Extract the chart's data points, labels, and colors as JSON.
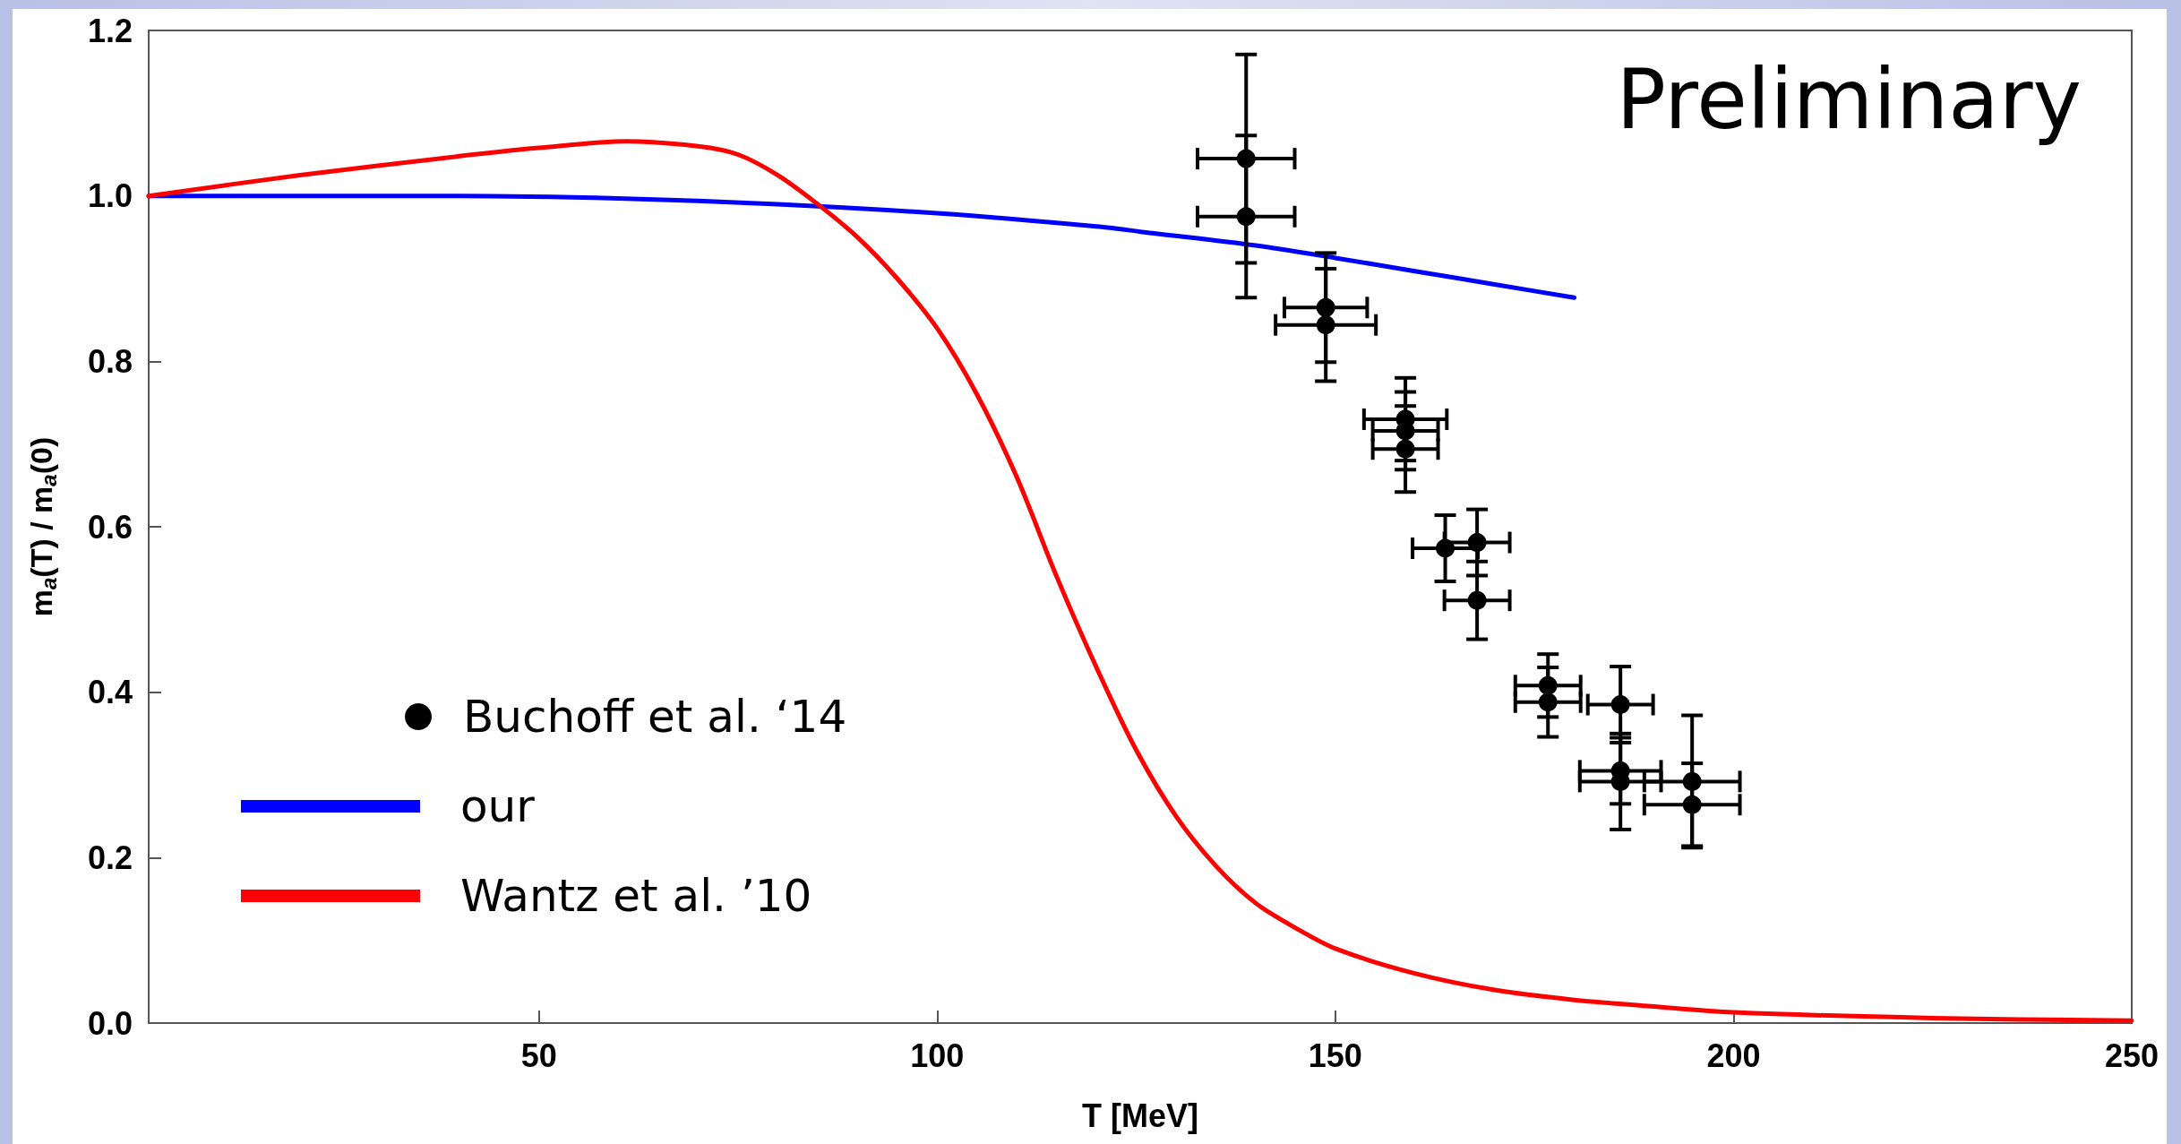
{
  "chart_data": {
    "type": "line",
    "xlabel": "T [MeV]",
    "ylabel": "m$_{a}$(T) / m$_{a}$(0)",
    "xlim": [
      1,
      250
    ],
    "xticks": [
      50,
      100,
      150,
      200,
      250
    ],
    "ylim": [
      0,
      1.2
    ],
    "yticks": [
      {
        "value": 0,
        "label": "0.0"
      },
      0.2,
      0.4,
      0.6,
      0.8,
      {
        "value": 1,
        "label": "1.0"
      },
      1.2
    ],
    "grid": false,
    "legend": "bottom left",
    "annotations": [
      "Preliminary"
    ],
    "series": [
      {
        "name": "Buchoff et al. ‘14",
        "type": "scatter",
        "color": "#000000",
        "marker": "circle",
        "x": [
          138.8,
          138.8,
          148.8,
          148.8,
          158.8,
          158.8,
          158.8,
          163.8,
          167.8,
          167.8,
          176.7,
          176.7,
          185.8,
          185.8,
          185.8,
          194.8,
          194.8
        ],
        "values": [
          1.045,
          0.975,
          0.865,
          0.844,
          0.73,
          0.716,
          0.694,
          0.574,
          0.581,
          0.511,
          0.408,
          0.388,
          0.385,
          0.305,
          0.292,
          0.292,
          0.264
        ],
        "errors": [
          0.126,
          0.098,
          0.066,
          0.068,
          0.05,
          0.047,
          0.052,
          0.04,
          0.04,
          0.047,
          0.038,
          0.042,
          0.046,
          0.04,
          0.058,
          0.08,
          0.05
        ],
        "xerrors": [
          6.1,
          6.1,
          5.2,
          6.3,
          5.2,
          4.1,
          4.1,
          4.1,
          4.1,
          4.1,
          4.1,
          4.1,
          4.1,
          5.1,
          5.1,
          6.0,
          6.0
        ]
      },
      {
        "name": "our",
        "color": "#0000ff",
        "marker": "none",
        "x": [
          1,
          20,
          40,
          60,
          80,
          100,
          120,
          127,
          140,
          150,
          160,
          170,
          180
        ],
        "values": [
          1.0,
          1.0,
          1.0,
          0.997,
          0.99,
          0.979,
          0.963,
          0.955,
          0.94,
          0.925,
          0.909,
          0.893,
          0.877
        ]
      },
      {
        "name": "Wantz et al. ’10",
        "color": "#ff0000",
        "marker": "none",
        "x": [
          1,
          20,
          40,
          50,
          61,
          70,
          75,
          80,
          85,
          90,
          95,
          100,
          105,
          110,
          115,
          120,
          125,
          130,
          135,
          140,
          145,
          150,
          160,
          170,
          180,
          190,
          200,
          225,
          250
        ],
        "values": [
          1.0,
          1.025,
          1.048,
          1.058,
          1.066,
          1.06,
          1.05,
          1.025,
          0.99,
          0.95,
          0.9,
          0.84,
          0.76,
          0.66,
          0.54,
          0.43,
          0.33,
          0.25,
          0.19,
          0.145,
          0.115,
          0.09,
          0.06,
          0.04,
          0.028,
          0.02,
          0.013,
          0.006,
          0.003
        ]
      }
    ]
  }
}
